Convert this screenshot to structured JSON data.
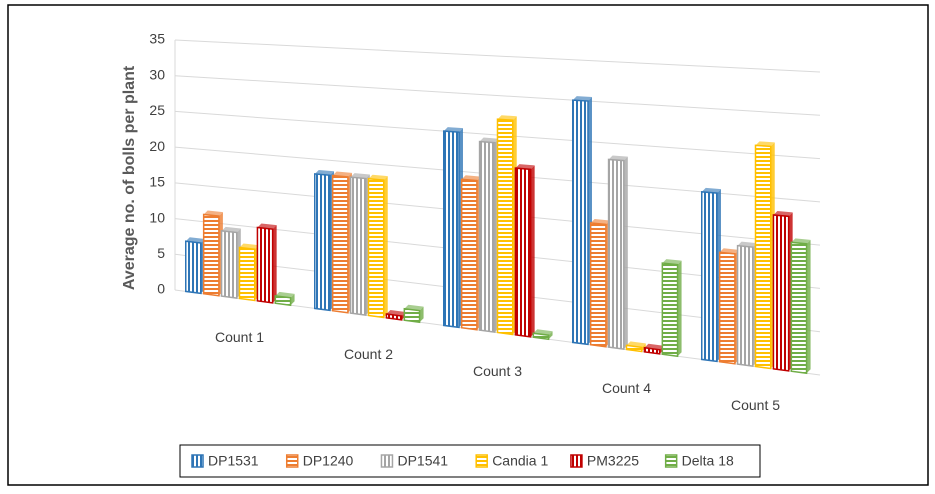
{
  "chart_data": {
    "type": "bar3d",
    "y_axis_label": "Average no. of bolls per plant",
    "categories": [
      "Count 1",
      "Count 2",
      "Count 3",
      "Count 4",
      "Count 5"
    ],
    "series": [
      {
        "name": "DP1531",
        "color": "#2e75b6",
        "values": [
          7,
          18,
          25,
          30,
          20
        ]
      },
      {
        "name": "DP1240",
        "color": "#ed7d31",
        "values": [
          11,
          18,
          19,
          15,
          13
        ]
      },
      {
        "name": "DP1541",
        "color": "#a5a5a5",
        "values": [
          9,
          18,
          24,
          23,
          14
        ]
      },
      {
        "name": "Candia 1",
        "color": "#ffc000",
        "values": [
          7,
          18,
          27,
          0.5,
          26
        ]
      },
      {
        "name": "PM3225",
        "color": "#c00000",
        "values": [
          10,
          0.5,
          21,
          0.5,
          18
        ]
      },
      {
        "name": "Delta 18",
        "color": "#70ad47",
        "values": [
          1,
          1.5,
          0.5,
          11,
          15
        ]
      }
    ],
    "ylim": [
      0,
      35
    ],
    "yticks": [
      0,
      5,
      10,
      15,
      20,
      25,
      30,
      35
    ],
    "grid": true,
    "legend": "bottom"
  }
}
